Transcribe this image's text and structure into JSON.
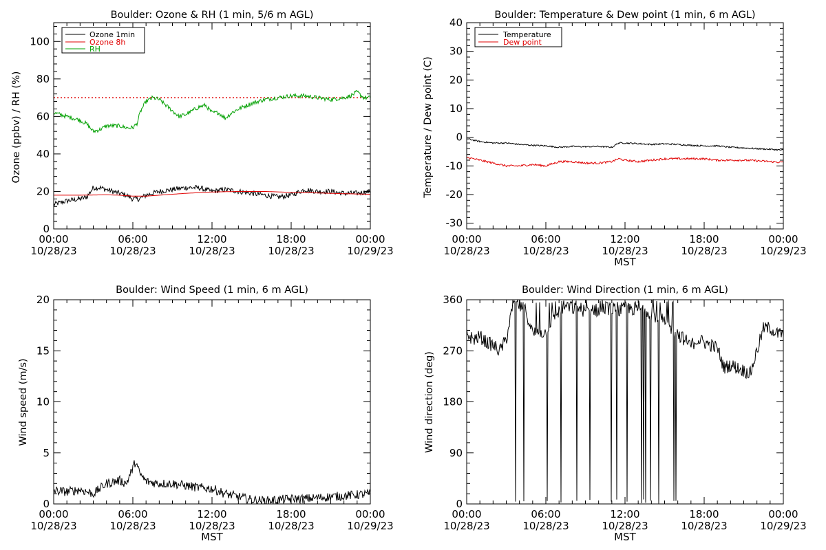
{
  "colors": {
    "black": "#000000",
    "red": "#e00000",
    "green": "#00a000"
  },
  "x_ticks": [
    {
      "time": "00:00",
      "date": "10/28/23"
    },
    {
      "time": "06:00",
      "date": "10/28/23"
    },
    {
      "time": "12:00",
      "date": "10/28/23"
    },
    {
      "time": "18:00",
      "date": "10/28/23"
    },
    {
      "time": "00:00",
      "date": "10/29/23"
    }
  ],
  "chart_data": [
    {
      "type": "line",
      "title": "Boulder: Ozone & RH (1 min, 5/6 m AGL)",
      "xlabel": "",
      "ylabel": "Ozone (ppbv) / RH (%)",
      "x_range_hours": [
        0,
        24
      ],
      "ylim": [
        0,
        110
      ],
      "y_ticks": [
        0,
        20,
        40,
        60,
        80,
        100
      ],
      "legend": {
        "placement": "top-left",
        "entries": [
          "Ozone 1min",
          "Ozone 8h",
          "RH"
        ]
      },
      "reference_lines": [
        {
          "y": 70,
          "style": "dotted",
          "color": "#e00000"
        }
      ],
      "series": [
        {
          "name": "Ozone 1min",
          "color": "#000000",
          "noise": 1.4,
          "x": [
            0,
            1,
            2,
            2.5,
            3,
            3.5,
            4,
            4.5,
            5,
            5.5,
            6,
            6.5,
            7,
            8,
            9,
            10,
            11,
            12,
            13,
            14,
            15,
            16,
            17,
            18,
            19,
            20,
            21,
            22,
            23,
            24
          ],
          "y": [
            13,
            15,
            16,
            17,
            22,
            22,
            21,
            20,
            19,
            18,
            16,
            16,
            18,
            20,
            21,
            22,
            22,
            20,
            21,
            20,
            19,
            18,
            17,
            18,
            21,
            20,
            20,
            19,
            19,
            20
          ]
        },
        {
          "name": "Ozone 8h",
          "color": "#e00000",
          "noise": 0,
          "x": [
            0,
            2,
            4,
            5,
            6,
            7,
            8,
            10,
            12,
            14,
            16,
            18,
            20,
            22,
            24
          ],
          "y": [
            18,
            18,
            18.2,
            18,
            17.5,
            17.5,
            18,
            19,
            19.7,
            20,
            20,
            19.5,
            19.2,
            18.8,
            18.5
          ]
        },
        {
          "name": "RH",
          "color": "#00a000",
          "noise": 1.1,
          "x": [
            0,
            1,
            2,
            2.5,
            3,
            3.5,
            4,
            4.5,
            5,
            5.5,
            6,
            6.3,
            6.6,
            7,
            7.5,
            8,
            8.5,
            9,
            9.5,
            10,
            10.5,
            11,
            11.5,
            12,
            12.5,
            13,
            13.5,
            14,
            15,
            16,
            17,
            18,
            19,
            20,
            21,
            22,
            22.5,
            23,
            23.5,
            24
          ],
          "y": [
            62,
            60,
            58,
            56,
            52,
            53,
            55,
            55,
            55,
            54,
            54,
            56,
            63,
            68,
            70,
            69,
            66,
            63,
            60,
            61,
            63,
            65,
            66,
            62,
            62,
            59,
            62,
            64,
            67,
            69,
            70,
            71,
            71,
            70,
            69,
            70,
            71,
            73,
            70,
            70
          ]
        }
      ]
    },
    {
      "type": "line",
      "title": "Boulder: Temperature & Dew point (1 min, 6 m AGL)",
      "xlabel": "MST",
      "ylabel": "Temperature / Dew point (C)",
      "x_range_hours": [
        0,
        24
      ],
      "ylim": [
        -32,
        40
      ],
      "y_ticks": [
        -30,
        -20,
        -10,
        0,
        10,
        20,
        30,
        40
      ],
      "legend": {
        "placement": "top-left",
        "entries": [
          "Temperature",
          "Dew point"
        ]
      },
      "series": [
        {
          "name": "Temperature",
          "color": "#000000",
          "noise": 0.25,
          "x": [
            0,
            1,
            2,
            3,
            4,
            5,
            6,
            7,
            8,
            9,
            10,
            11,
            11.5,
            12,
            13,
            14,
            15,
            16,
            17,
            18,
            19,
            20,
            21,
            22,
            23,
            24
          ],
          "y": [
            -0.5,
            -1.5,
            -2,
            -2,
            -2.5,
            -2.8,
            -3,
            -3.5,
            -3.2,
            -3.3,
            -3.2,
            -3.5,
            -2,
            -2,
            -2.2,
            -2.5,
            -2.3,
            -2.5,
            -2.8,
            -3,
            -3,
            -3.5,
            -3.7,
            -4,
            -4.2,
            -4.5
          ]
        },
        {
          "name": "Dew point",
          "color": "#e00000",
          "noise": 0.35,
          "x": [
            0,
            1,
            2,
            3,
            4,
            5,
            6,
            7,
            8,
            9,
            10,
            11,
            11.5,
            12,
            13,
            14,
            15,
            16,
            17,
            18,
            19,
            20,
            21,
            22,
            23,
            24
          ],
          "y": [
            -7,
            -8,
            -9,
            -10,
            -10,
            -9.5,
            -10,
            -8.5,
            -8.5,
            -9,
            -9,
            -8.5,
            -7.5,
            -8,
            -8.5,
            -8,
            -7.5,
            -7.5,
            -7.5,
            -7.5,
            -8,
            -8,
            -8,
            -8.2,
            -8.5,
            -8.8
          ]
        }
      ]
    },
    {
      "type": "line",
      "title": "Boulder: Wind Speed (1 min, 6 m AGL)",
      "xlabel": "",
      "ylabel": "Wind speed (m/s)",
      "x_range_hours": [
        0,
        24
      ],
      "ylim": [
        0,
        20
      ],
      "y_ticks": [
        0,
        5,
        10,
        15,
        20
      ],
      "series": [
        {
          "name": "",
          "color": "#000000",
          "noise": 0.45,
          "x": [
            0,
            1,
            2,
            3,
            4,
            5,
            5.5,
            6,
            6.2,
            6.5,
            7,
            8,
            9,
            10,
            11,
            12,
            13,
            14,
            15,
            16,
            17,
            18,
            19,
            20,
            21,
            22,
            23,
            24
          ],
          "y": [
            1.3,
            1.2,
            1.4,
            1.0,
            2.0,
            2.3,
            2.0,
            3.5,
            4.2,
            3.0,
            2.2,
            2.0,
            2.0,
            1.8,
            1.6,
            1.5,
            1.0,
            0.7,
            0.4,
            0.3,
            0.4,
            0.5,
            0.5,
            0.6,
            0.7,
            0.8,
            0.9,
            1.0
          ]
        }
      ]
    },
    {
      "type": "line",
      "title": "Boulder: Wind Direction (1 min, 6 m AGL)",
      "xlabel": "MST",
      "ylabel": "Wind direction (deg)",
      "x_range_hours": [
        0,
        24
      ],
      "ylim": [
        0,
        360
      ],
      "y_ticks": [
        0,
        90,
        180,
        270,
        360
      ],
      "series": [
        {
          "name": "",
          "color": "#000000",
          "noise": 12,
          "x": [
            0,
            0.5,
            1,
            1.5,
            2,
            2.5,
            3,
            3.5,
            4,
            4.5,
            5,
            5.5,
            6,
            6.5,
            7,
            7.5,
            8,
            8.5,
            9,
            9.5,
            10,
            10.5,
            11,
            11.5,
            12,
            12.5,
            13,
            13.5,
            14,
            14.5,
            15,
            15.5,
            16,
            16.5,
            17,
            17.5,
            18,
            18.5,
            19,
            19.5,
            20,
            20.5,
            21,
            21.5,
            22,
            22.5,
            23,
            23.5,
            24
          ],
          "y": [
            300,
            290,
            295,
            285,
            280,
            270,
            290,
            350,
            350,
            340,
            300,
            305,
            300,
            330,
            340,
            350,
            345,
            345,
            340,
            345,
            340,
            345,
            345,
            340,
            345,
            345,
            340,
            345,
            335,
            330,
            320,
            310,
            300,
            290,
            280,
            290,
            285,
            280,
            275,
            240,
            245,
            240,
            235,
            230,
            270,
            310,
            310,
            300,
            300
          ]
        }
      ]
    }
  ]
}
